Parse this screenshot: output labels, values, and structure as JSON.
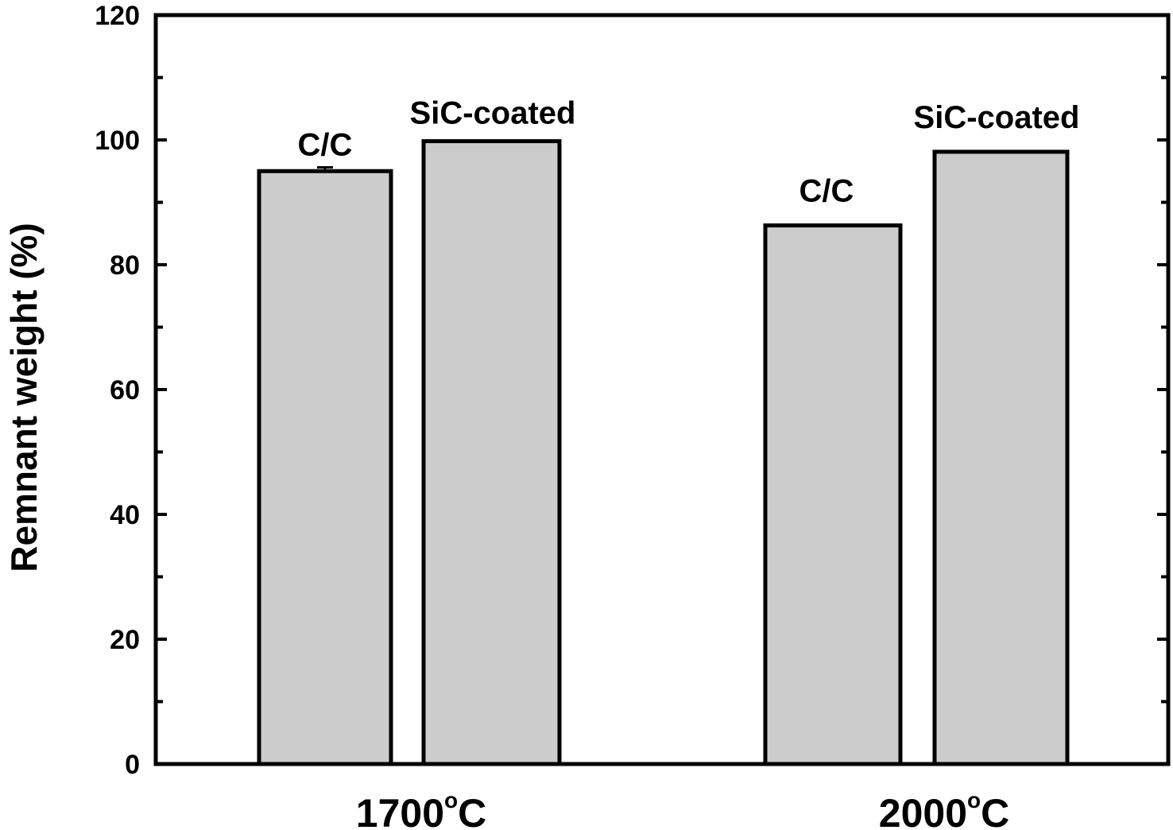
{
  "chart_data": {
    "type": "bar",
    "title": "",
    "xlabel": "",
    "ylabel": "Remnant weight (%)",
    "ylim": [
      0,
      120
    ],
    "y_major_ticks": [
      0,
      20,
      40,
      60,
      80,
      100,
      120
    ],
    "y_tick_labels": [
      "0",
      "20",
      "40",
      "60",
      "80",
      "100",
      "120"
    ],
    "y_minor_step": 10,
    "grid": false,
    "legend": "none",
    "categories": [
      {
        "label_main": "1700",
        "label_sup": "o",
        "label_unit": "C"
      },
      {
        "label_main": "2000",
        "label_sup": "o",
        "label_unit": "C"
      }
    ],
    "series": [
      {
        "name": "C/C",
        "values": [
          95.0,
          86.3
        ],
        "error": [
          0.6,
          null
        ]
      },
      {
        "name": "SiC-coated",
        "values": [
          99.8,
          98.1
        ],
        "error": [
          null,
          null
        ]
      }
    ],
    "bar_labels": [
      [
        "C/C",
        "SiC-coated"
      ],
      [
        "C/C",
        "SiC-coated"
      ]
    ],
    "bar_fill": "#cccccc",
    "bar_stroke": "#000000"
  }
}
